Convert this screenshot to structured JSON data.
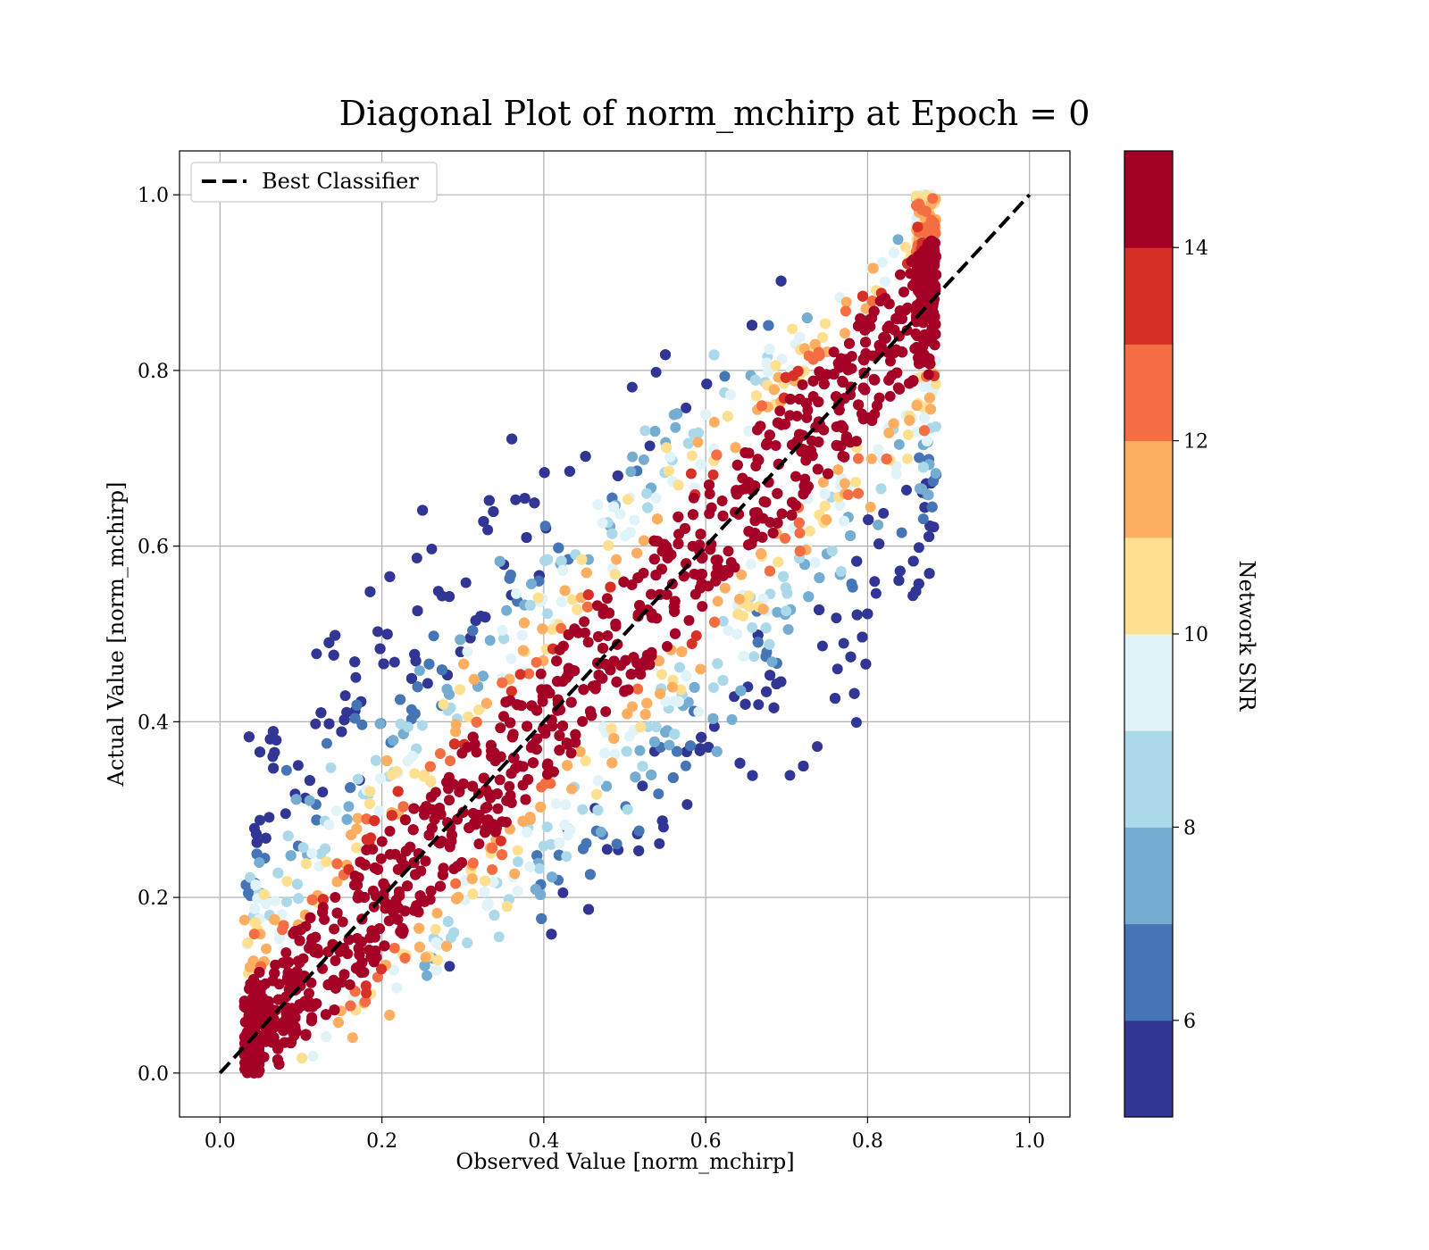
{
  "chart_data": {
    "type": "scatter",
    "title": "Diagonal Plot of norm_mchirp at Epoch = 0",
    "xlabel": "Observed Value [norm_mchirp]",
    "ylabel": "Actual Value [norm_mchirp]",
    "xlim": [
      -0.05,
      1.05
    ],
    "ylim": [
      -0.05,
      1.05
    ],
    "xticks": [
      "0.0",
      "0.2",
      "0.4",
      "0.6",
      "0.8",
      "1.0"
    ],
    "yticks": [
      "0.0",
      "0.2",
      "0.4",
      "0.6",
      "0.8",
      "1.0"
    ],
    "grid": true,
    "legend": {
      "position": "top-left",
      "entries": [
        "Best Classifier"
      ]
    },
    "reference_line": {
      "name": "Best Classifier",
      "style": "dashed",
      "color": "#000000",
      "x": [
        0.0,
        1.0
      ],
      "y": [
        0.0,
        1.0
      ]
    },
    "colorbar": {
      "label": "Network SNR",
      "range": [
        5,
        15
      ],
      "ticks": [
        "6",
        "8",
        "10",
        "12",
        "14"
      ],
      "colors": [
        "#313695",
        "#4575b4",
        "#74add1",
        "#abd9e9",
        "#e0f3f8",
        "#fee090",
        "#fdae61",
        "#f46d43",
        "#d73027",
        "#a50026"
      ]
    },
    "point_distribution": {
      "note": "dense scatter of predictions around the diagonal; high SNR near diagonal, low SNR spreads away",
      "x_range": [
        0.03,
        0.89
      ],
      "y_range": [
        0.0,
        1.0
      ]
    }
  }
}
